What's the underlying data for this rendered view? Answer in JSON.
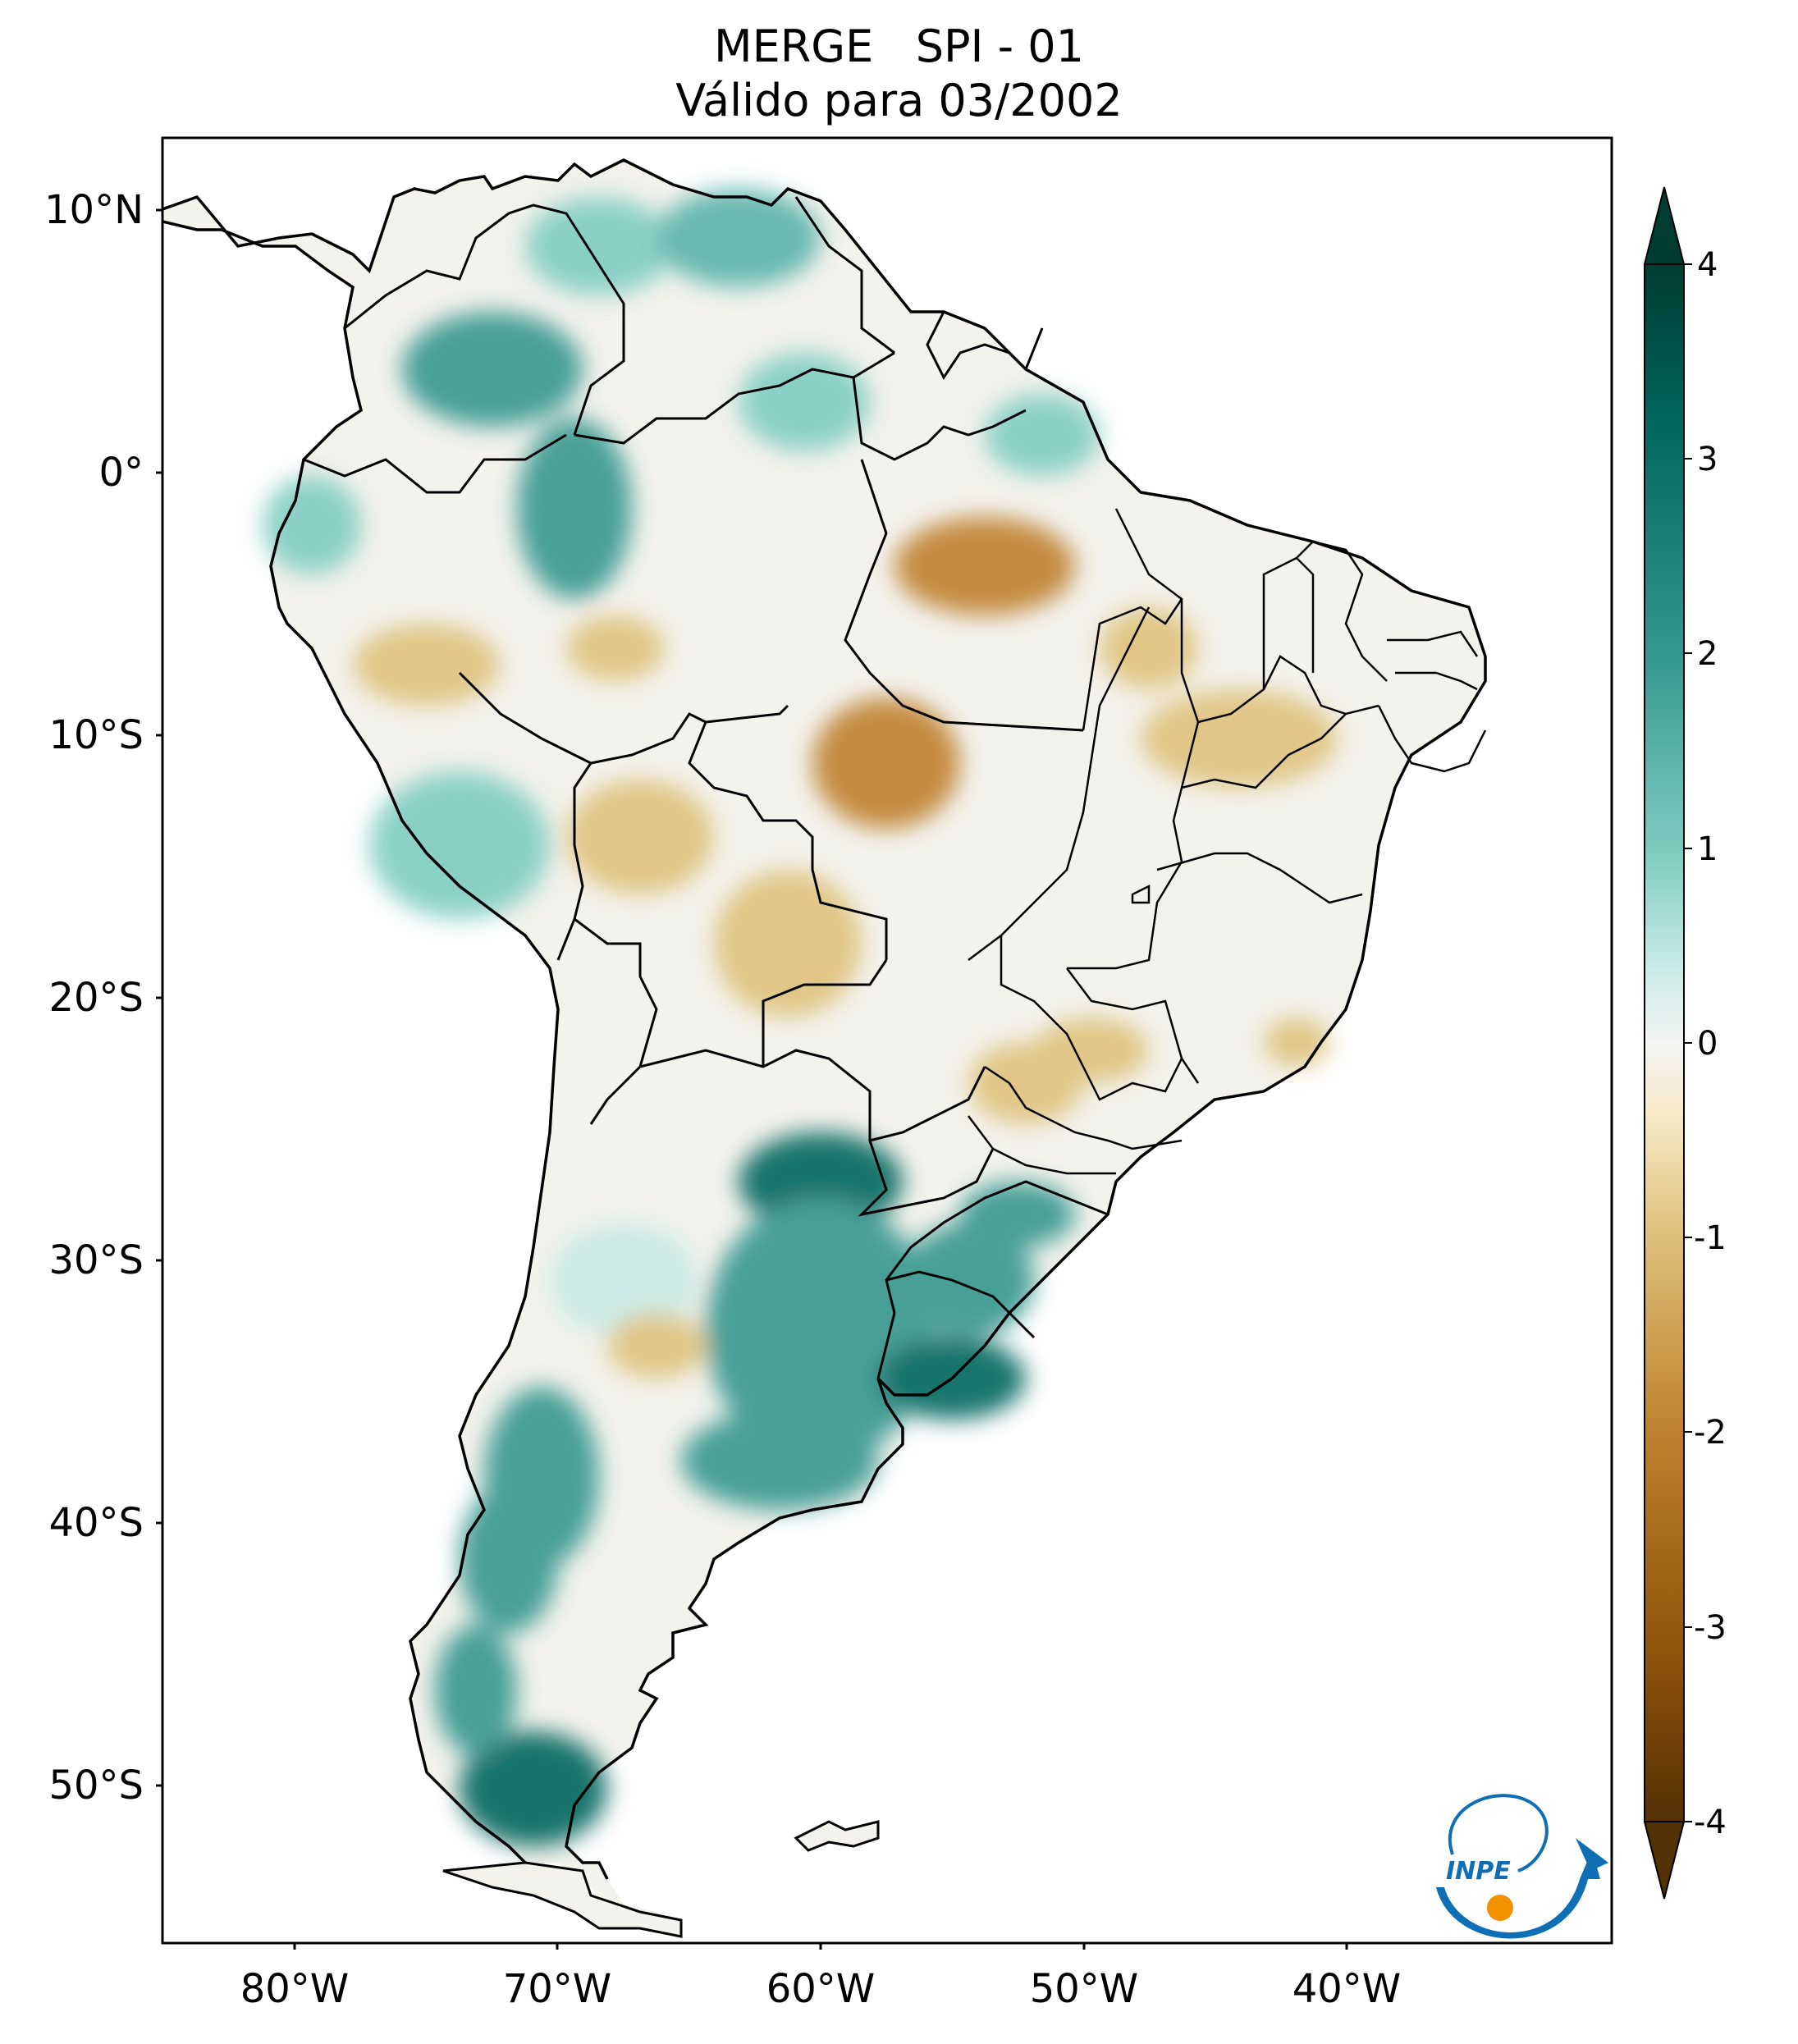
{
  "title": {
    "line1": "MERGE   SPI - 01",
    "line2": "Válido para 03/2002"
  },
  "map": {
    "lat_ticks": [
      "10°N",
      "0°",
      "10°S",
      "20°S",
      "30°S",
      "40°S",
      "50°S"
    ],
    "lon_ticks": [
      "80°W",
      "70°W",
      "60°W",
      "50°W",
      "40°W"
    ],
    "extent": {
      "lon_min": -85,
      "lon_max": -30,
      "lat_min": -56,
      "lat_max": 13
    }
  },
  "colorbar": {
    "colormap": "BrBG",
    "ticks": [
      "4",
      "3",
      "2",
      "1",
      "0",
      "-1",
      "-2",
      "-3",
      "-4"
    ],
    "range": [
      -4,
      4
    ],
    "extend": "both",
    "colors": {
      "min": "#543005",
      "mid": "#f5f5f5",
      "max": "#003c30"
    }
  },
  "logo": {
    "text": "INPE",
    "colors": {
      "blue": "#0f6fb5",
      "orange": "#f39200"
    }
  }
}
